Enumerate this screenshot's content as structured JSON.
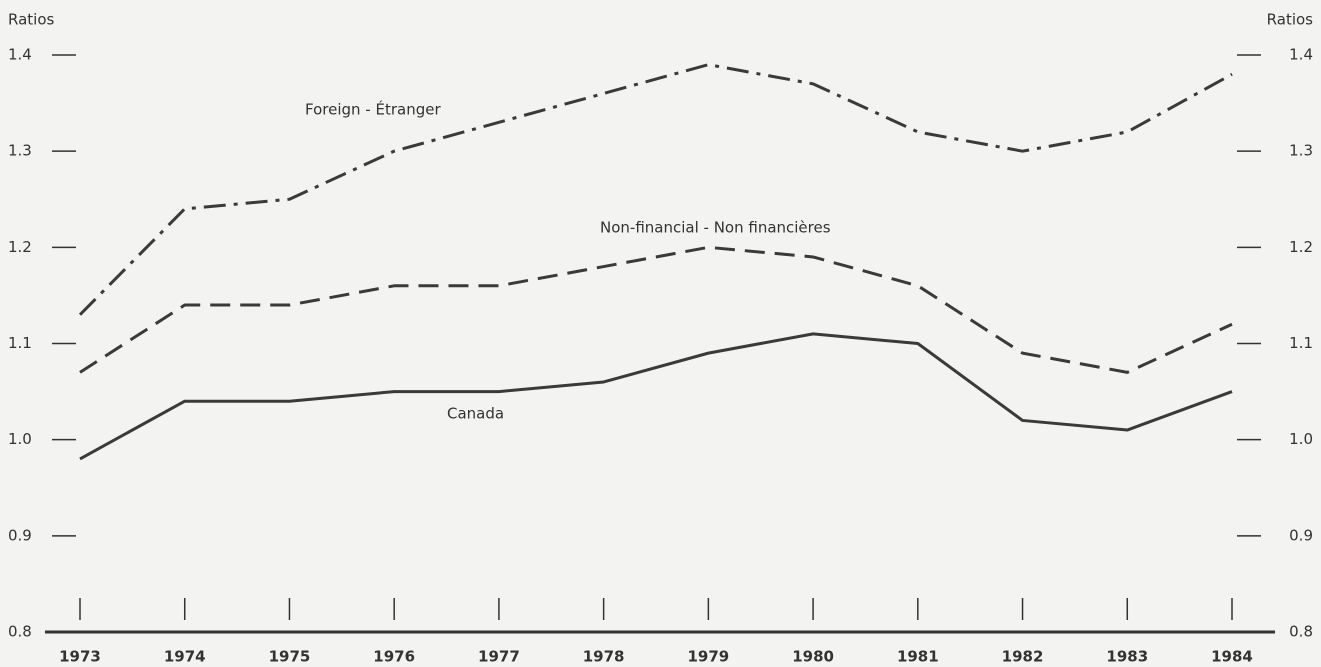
{
  "chart_data": {
    "type": "line",
    "y_label": "Ratios",
    "y2_label": "Ratios",
    "x": [
      1973,
      1974,
      1975,
      1976,
      1977,
      1978,
      1979,
      1980,
      1981,
      1982,
      1983,
      1984
    ],
    "series": [
      {
        "name": "Foreign - Étranger",
        "color": "#3a3a3a",
        "style": "dash-dot",
        "values": [
          1.13,
          1.24,
          1.25,
          1.3,
          1.33,
          1.36,
          1.39,
          1.37,
          1.32,
          1.3,
          1.32,
          1.38
        ]
      },
      {
        "name": "Non-financial - Non financières",
        "color": "#3a3a3a",
        "style": "dash",
        "values": [
          1.07,
          1.14,
          1.14,
          1.16,
          1.16,
          1.18,
          1.2,
          1.19,
          1.16,
          1.09,
          1.07,
          1.12
        ]
      },
      {
        "name": "Canada",
        "color": "#3a3a3a",
        "style": "solid",
        "values": [
          0.98,
          1.04,
          1.04,
          1.05,
          1.05,
          1.06,
          1.09,
          1.11,
          1.1,
          1.02,
          1.01,
          1.05
        ]
      }
    ],
    "ylim": [
      0.8,
      1.4
    ],
    "yticks": [
      0.8,
      0.9,
      {
        "value": 1,
        "label": "1.0"
      },
      1.1,
      1.2,
      1.3,
      1.4
    ],
    "y2lim": [
      0.8,
      1.4
    ],
    "y2ticks": [
      0.8,
      0.9,
      {
        "value": 1,
        "label": "1.0"
      },
      1.1,
      1.2,
      1.3,
      1.4
    ],
    "xlim": [
      1973,
      1984
    ]
  }
}
